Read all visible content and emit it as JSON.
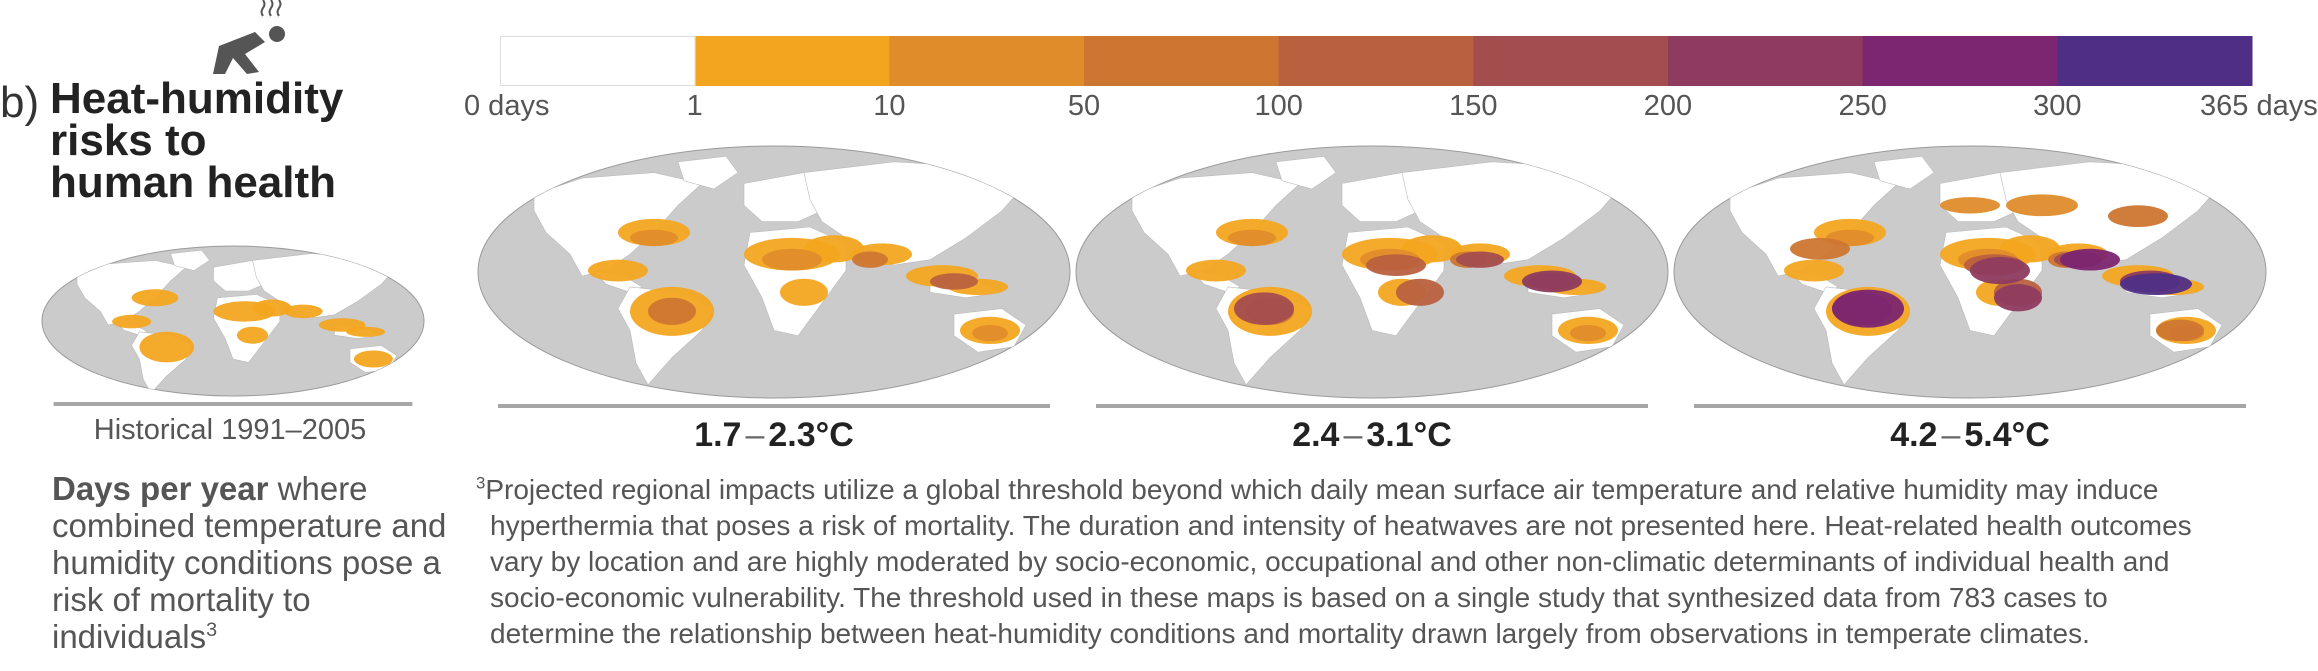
{
  "panel": {
    "letter": "b)",
    "title_lines": [
      "Heat-humidity",
      "risks to",
      "human health"
    ],
    "icon": "person-in-heat-icon"
  },
  "legend": {
    "colors": [
      "#ffffff",
      "#f3a51f",
      "#e08c2b",
      "#cd7631",
      "#b9613f",
      "#a44d4f",
      "#8e3b5f",
      "#7c2570",
      "#4f2f86"
    ],
    "ticks": [
      "0 days",
      "1",
      "10",
      "50",
      "100",
      "150",
      "200",
      "250",
      "300",
      "365 days"
    ]
  },
  "maps": {
    "historical": {
      "label": "Historical 1991–2005"
    },
    "scenarios": [
      {
        "low": "1.7",
        "dash": "–",
        "high": "2.3°C"
      },
      {
        "low": "2.4",
        "dash": "–",
        "high": "3.1°C"
      },
      {
        "low": "4.2",
        "dash": "–",
        "high": "5.4°C"
      }
    ],
    "land_color": "#cbcbcb",
    "ocean_color": "#ffffff",
    "border_color": "#9a9a9a"
  },
  "description": {
    "bold": "Days per year",
    "rest": " where combined temperature and humidity conditions pose a risk of mortality to individuals",
    "sup": "3"
  },
  "footnote": {
    "mark": "3",
    "lines": [
      "Projected regional impacts utilize a global threshold beyond which daily mean surface air temperature and relative humidity may induce",
      "hyperthermia that poses a risk of mortality. The duration and intensity of heatwaves are not presented here. Heat-related health outcomes",
      "vary by location and are highly moderated by socio-economic, occupational and other non-climatic determinants of individual health and",
      "socio-economic vulnerability. The threshold used in these maps is based on a single study that synthesized data from 783 cases to",
      "determine the relationship between heat-humidity conditions and mortality drawn largely from observations in temperate climates."
    ]
  }
}
